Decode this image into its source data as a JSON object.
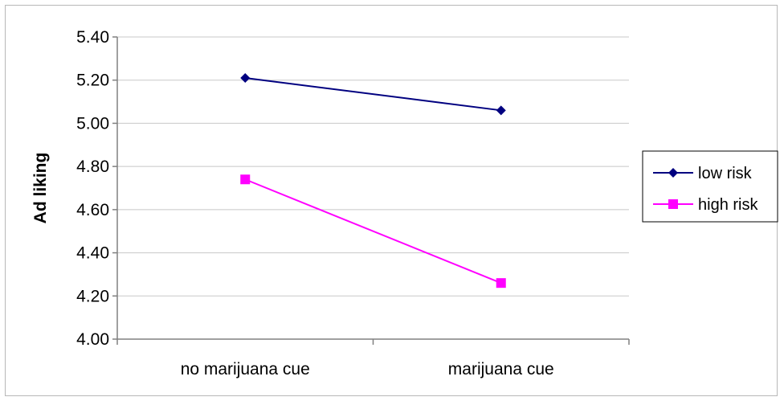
{
  "chart_data": {
    "type": "line",
    "title": "",
    "xlabel": "",
    "ylabel": "Ad liking",
    "categories": [
      "no marijuana cue",
      "marijuana cue"
    ],
    "ylim": [
      4.0,
      5.4
    ],
    "yticks": [
      "4.00",
      "4.20",
      "4.40",
      "4.60",
      "4.80",
      "5.00",
      "5.20",
      "5.40"
    ],
    "grid": true,
    "legend_position": "right",
    "series": [
      {
        "name": "low risk",
        "values": [
          5.21,
          5.06
        ],
        "color": "#000080",
        "marker": "diamond"
      },
      {
        "name": "high risk",
        "values": [
          4.74,
          4.26
        ],
        "color": "#ff00ff",
        "marker": "square"
      }
    ]
  }
}
